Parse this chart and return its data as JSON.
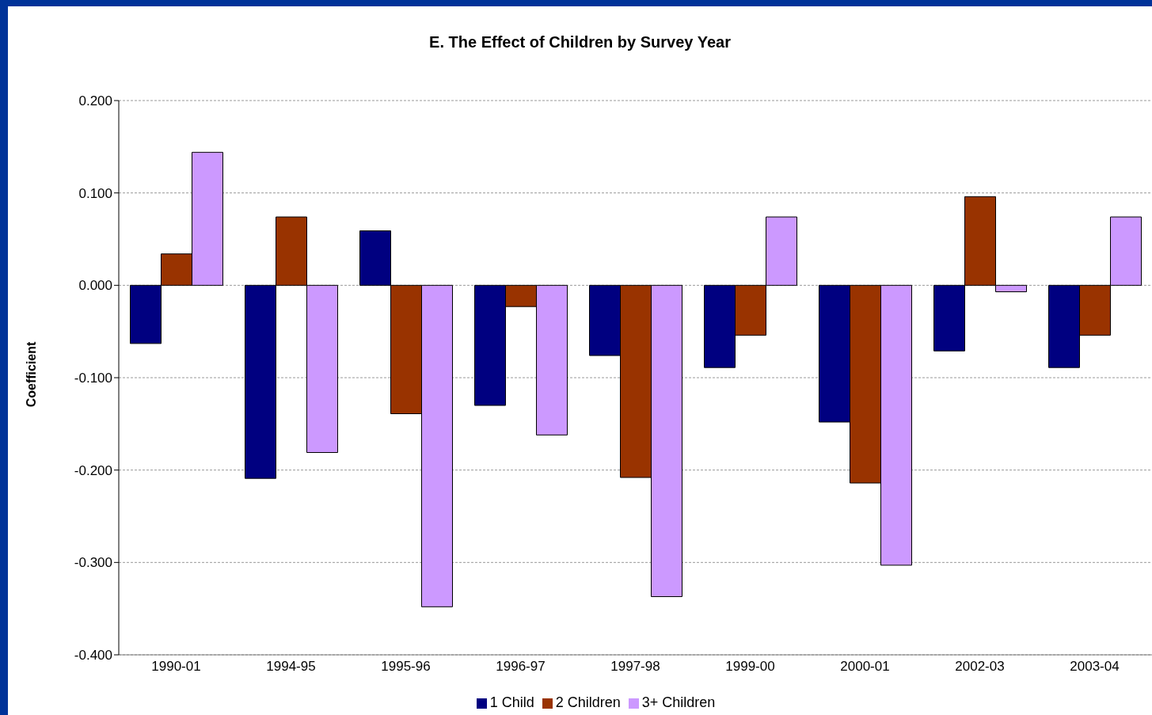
{
  "chart_data": {
    "type": "bar",
    "title": "E.  The Effect of Children by Survey Year",
    "ylabel": "Coefficient",
    "categories": [
      "1990-01",
      "1994-95",
      "1995-96",
      "1996-97",
      "1997-98",
      "1999-00",
      "2000-01",
      "2002-03",
      "2003-04"
    ],
    "series": [
      {
        "name": "1 Child",
        "color": "#000080",
        "values": [
          -0.063,
          -0.209,
          0.059,
          -0.13,
          -0.076,
          -0.089,
          -0.148,
          -0.071,
          -0.089
        ]
      },
      {
        "name": "2 Children",
        "color": "#993300",
        "values": [
          0.034,
          0.074,
          -0.139,
          -0.023,
          -0.208,
          -0.054,
          -0.214,
          0.096,
          -0.054
        ]
      },
      {
        "name": "3+ Children",
        "color": "#cc99ff",
        "values": [
          0.144,
          -0.181,
          -0.348,
          -0.162,
          -0.337,
          0.074,
          -0.303,
          -0.007,
          0.074
        ]
      }
    ],
    "ylim": [
      -0.4,
      0.2
    ],
    "yticks": [
      {
        "value": -0.4,
        "label": "-0.400"
      },
      {
        "value": -0.3,
        "label": "-0.300"
      },
      {
        "value": -0.2,
        "label": "-0.200"
      },
      {
        "value": -0.1,
        "label": "-0.100"
      },
      {
        "value": 0,
        "label": "0.000"
      },
      {
        "value": 0.1,
        "label": "0.100"
      },
      {
        "value": 0.2,
        "label": "0.200"
      }
    ],
    "grid": "y",
    "legend": "bottom"
  }
}
